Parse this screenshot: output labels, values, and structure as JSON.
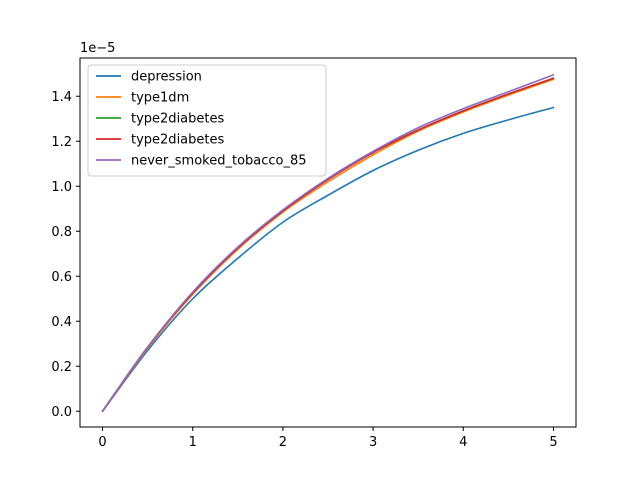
{
  "chart_data": {
    "type": "line",
    "title": "",
    "xlabel": "",
    "ylabel": "",
    "y_offset_label": "1e−5",
    "xlim": [
      -0.25,
      5.25
    ],
    "ylim": [
      -0.07,
      1.57
    ],
    "xticks": [
      0,
      1,
      2,
      3,
      4,
      5
    ],
    "xtick_labels": [
      "0",
      "1",
      "2",
      "3",
      "4",
      "5"
    ],
    "yticks": [
      0.0,
      0.2,
      0.4,
      0.6,
      0.8,
      1.0,
      1.2,
      1.4
    ],
    "ytick_labels": [
      "0.0",
      "0.2",
      "0.4",
      "0.6",
      "0.8",
      "1.0",
      "1.2",
      "1.4"
    ],
    "grid": false,
    "legend_position": "top-left",
    "x": [
      0,
      0.5,
      1,
      1.5,
      2,
      2.5,
      3,
      3.5,
      4,
      4.5,
      5
    ],
    "series": [
      {
        "name": "depression",
        "color": "#1f77b4",
        "values": [
          0.0,
          0.27,
          0.5,
          0.68,
          0.84,
          0.96,
          1.07,
          1.16,
          1.235,
          1.295,
          1.35
        ]
      },
      {
        "name": "type1dm",
        "color": "#ff7f0e",
        "values": [
          0.0,
          0.28,
          0.52,
          0.72,
          0.885,
          1.02,
          1.14,
          1.245,
          1.33,
          1.405,
          1.475
        ]
      },
      {
        "name": "type2diabetes",
        "color": "#2ca02c",
        "values": [
          0.0,
          0.285,
          0.525,
          0.725,
          0.89,
          1.03,
          1.15,
          1.25,
          1.335,
          1.41,
          1.48
        ]
      },
      {
        "name": "type2diabetes",
        "color": "#d62728",
        "values": [
          0.0,
          0.285,
          0.525,
          0.725,
          0.89,
          1.03,
          1.15,
          1.25,
          1.335,
          1.41,
          1.48
        ]
      },
      {
        "name": "never_smoked_tobacco_85",
        "color": "#9467bd",
        "values": [
          0.0,
          0.285,
          0.53,
          0.73,
          0.895,
          1.035,
          1.155,
          1.26,
          1.345,
          1.42,
          1.495
        ]
      }
    ]
  }
}
